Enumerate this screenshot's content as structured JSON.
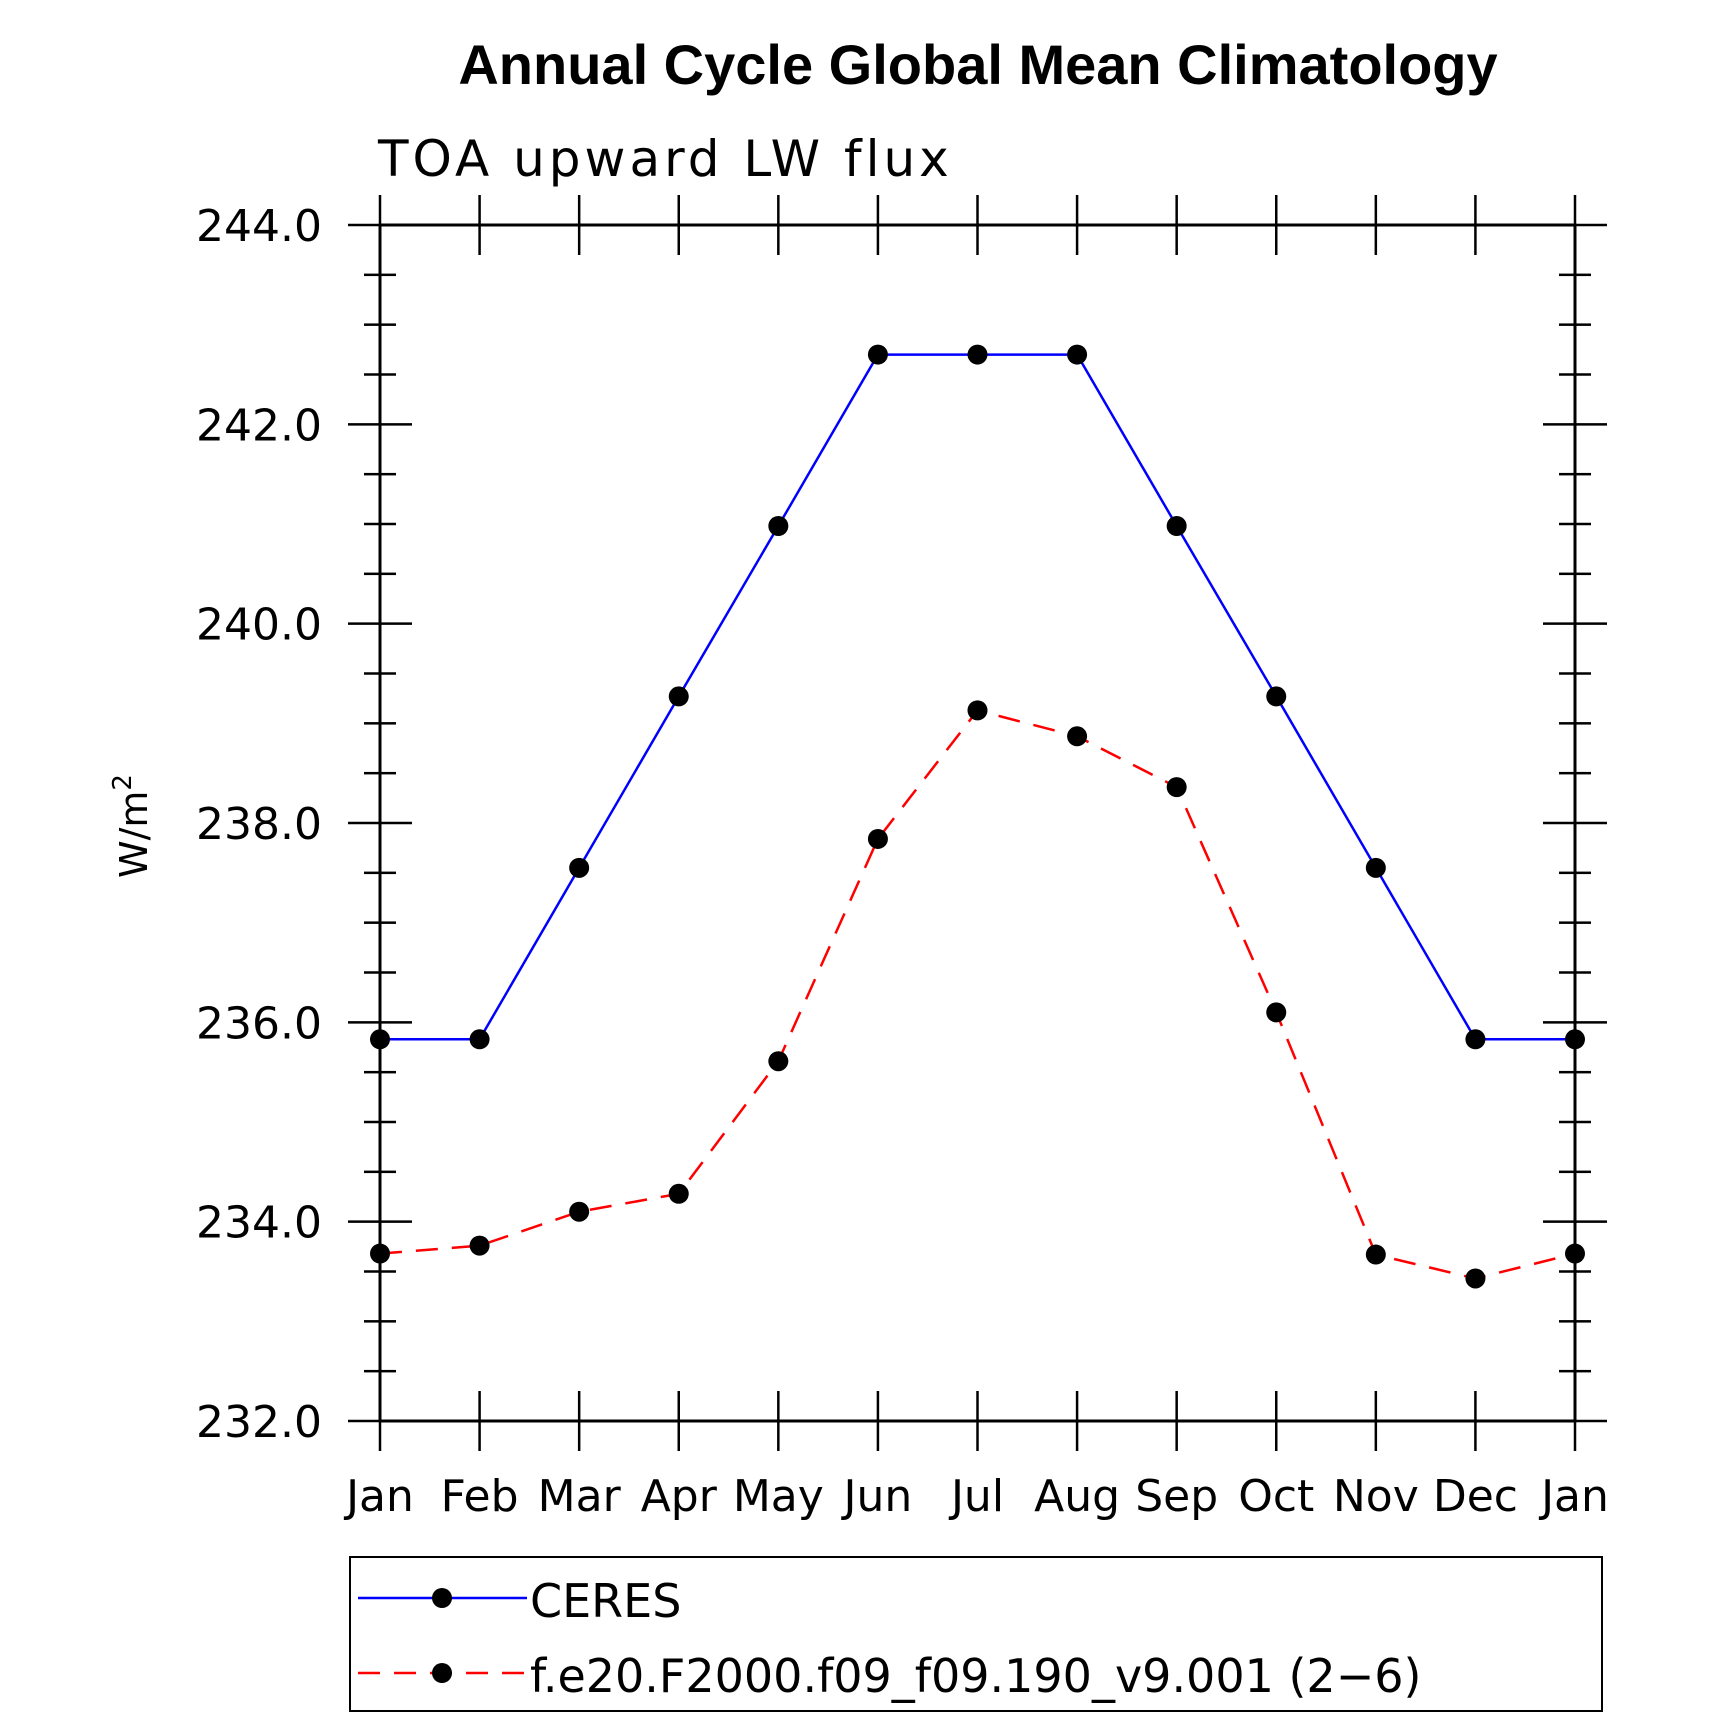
{
  "chart_data": {
    "type": "line",
    "title": "Annual Cycle Global Mean Climatology",
    "subtitle": "TOA upward LW flux",
    "ylabel_base": "W/m",
    "ylabel_sup": "2",
    "categories": [
      "Jan",
      "Feb",
      "Mar",
      "Apr",
      "May",
      "Jun",
      "Jul",
      "Aug",
      "Sep",
      "Oct",
      "Nov",
      "Dec",
      "Jan"
    ],
    "ylim": [
      232.0,
      244.0
    ],
    "yticks": [
      "232.0",
      "234.0",
      "236.0",
      "238.0",
      "240.0",
      "242.0",
      "244.0"
    ],
    "legend_position": "bottom",
    "series": [
      {
        "name": "CERES",
        "color": "#0000ff",
        "dash": "solid",
        "values": [
          235.83,
          235.83,
          237.55,
          239.27,
          240.98,
          242.7,
          242.7,
          242.7,
          240.98,
          239.27,
          237.55,
          235.83,
          235.83
        ]
      },
      {
        "name": "f.e20.F2000.f09_f09.190_v9.001 (2−6)",
        "color": "#ff0000",
        "dash": "dashed",
        "values": [
          233.68,
          233.76,
          234.1,
          234.28,
          235.61,
          237.84,
          239.13,
          238.87,
          238.36,
          236.1,
          233.67,
          233.43,
          233.68
        ]
      }
    ]
  }
}
